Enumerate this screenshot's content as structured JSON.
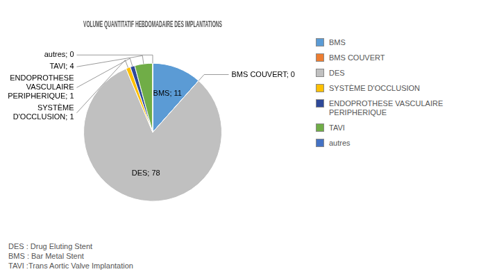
{
  "chart_data": {
    "type": "pie",
    "title": "VOLUME QUANTITATIF HEBDOMADAIRE DES IMPLANTATIONS",
    "categories": [
      "BMS",
      "BMS COUVERT",
      "DES",
      "SYSTÈME D'OCCLUSION",
      "ENDOPROTHESE VASCULAIRE\nPERIPHERIQUE",
      "TAVI",
      "autres"
    ],
    "values": [
      11,
      0.001,
      78,
      1,
      1,
      4,
      0.001
    ],
    "value_labels": [
      "BMS; 11",
      "BMS COUVERT; 0",
      "DES; 78",
      "SYSTÈME\nD'OCCLUSION; 1",
      "ENDOPROTHESE\nVASCULAIRE\nPERIPHERIQUE; 1",
      "TAVI; 4",
      "autres; 0"
    ],
    "colors": [
      "#5B9BD5",
      "#ED7D31",
      "#c0c0c0",
      "#FFC000",
      "#2E4999",
      "#70AD47",
      "#4472C4"
    ],
    "data_labels": true,
    "legend": "right",
    "footnote": "DES : Drug Eluting Stent\nBMS : Bar Metal Stent\nTAVI :Trans Aortic Valve Implantation"
  }
}
